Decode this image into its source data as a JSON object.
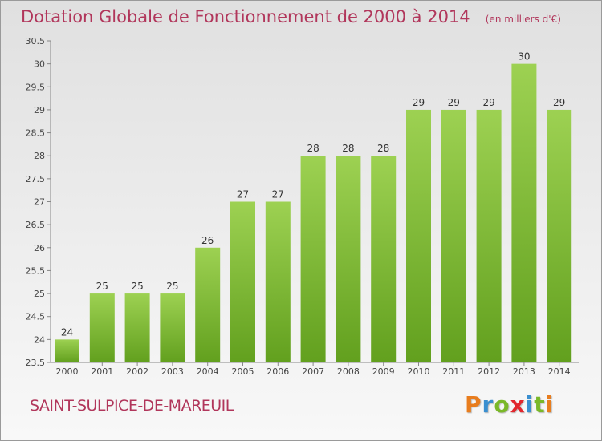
{
  "header": {
    "title": "Dotation Globale de Fonctionnement de 2000 à 2014",
    "subtitle": "(en milliers d'€)"
  },
  "footer": {
    "commune": "SAINT-SULPICE-DE-MAREUIL",
    "brand": "Proxiti"
  },
  "colors": {
    "title": "#b1365b",
    "bar_light": "#9dd152",
    "bar_dark": "#62a01e",
    "brand_letters": [
      "#e87d1e",
      "#3a8fd0",
      "#7ab828",
      "#e2272e",
      "#3a8fd0",
      "#7ab828",
      "#e87d1e"
    ]
  },
  "chart_data": {
    "type": "bar",
    "title": "Dotation Globale de Fonctionnement de 2000 à 2014",
    "subtitle": "(en milliers d'€)",
    "categories": [
      "2000",
      "2001",
      "2002",
      "2003",
      "2004",
      "2005",
      "2006",
      "2007",
      "2008",
      "2009",
      "2010",
      "2011",
      "2012",
      "2013",
      "2014"
    ],
    "values": [
      24,
      25,
      25,
      25,
      26,
      27,
      27,
      28,
      28,
      28,
      29,
      29,
      29,
      30,
      29
    ],
    "data_labels": [
      "24",
      "25",
      "25",
      "25",
      "26",
      "27",
      "27",
      "28",
      "28",
      "28",
      "29",
      "29",
      "29",
      "30",
      "29"
    ],
    "ylim": [
      23.5,
      30.5
    ],
    "yticks": [
      23.5,
      24,
      24.5,
      25,
      25.5,
      26,
      26.5,
      27,
      27.5,
      28,
      28.5,
      29,
      29.5,
      30,
      30.5
    ],
    "ytick_labels": [
      "23.5",
      "24",
      "24.5",
      "25",
      "25.5",
      "26",
      "26.5",
      "27",
      "27.5",
      "28",
      "28.5",
      "29",
      "29.5",
      "30",
      "30.5"
    ],
    "grid": false,
    "legend": "none"
  }
}
